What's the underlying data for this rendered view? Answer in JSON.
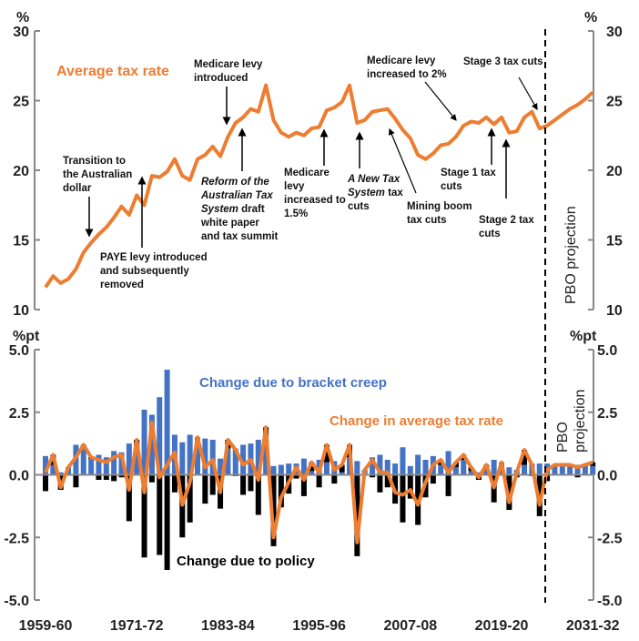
{
  "chart_data": [
    {
      "type": "line",
      "title": "Average tax rate",
      "unit_left": "%",
      "unit_right": "%",
      "ylim": [
        10,
        30
      ],
      "y_ticks": [
        "30",
        "25",
        "20",
        "15",
        "10"
      ],
      "series": [
        {
          "name": "Average tax rate",
          "color": "#ED7D31",
          "values": [
            11.6,
            12.4,
            11.9,
            12.2,
            12.9,
            14.1,
            14.8,
            15.4,
            15.9,
            16.6,
            17.4,
            16.8,
            18.2,
            17.5,
            19.6,
            19.5,
            19.9,
            20.8,
            19.6,
            19.3,
            20.8,
            21.1,
            21.7,
            21.0,
            22.4,
            23.4,
            23.8,
            24.4,
            24.2,
            26.1,
            23.6,
            22.7,
            22.4,
            22.7,
            22.5,
            23.0,
            23.1,
            24.3,
            24.5,
            24.9,
            26.1,
            23.4,
            23.6,
            24.2,
            24.3,
            24.4,
            23.7,
            22.9,
            22.3,
            21.1,
            20.8,
            21.2,
            21.8,
            21.9,
            22.4,
            23.2,
            23.5,
            23.4,
            23.8,
            23.3,
            23.8,
            22.7,
            22.8,
            23.8,
            24.2,
            23.0,
            23.2,
            23.6,
            24.0,
            24.4,
            24.7,
            25.1,
            25.6
          ]
        }
      ],
      "projection_label": "PBO projection",
      "projection_start": "2025-26"
    },
    {
      "type": "bar",
      "unit_left": "%pt",
      "unit_right": "%pt",
      "ylim": [
        -5,
        5
      ],
      "y_ticks": [
        "5.0",
        "2.5",
        "0.0",
        "-2.5",
        "-5.0"
      ],
      "series": [
        {
          "name": "Change due to bracket creep",
          "color": "#4472C4",
          "kind": "bar",
          "values": [
            0.75,
            0.4,
            0.1,
            0.3,
            1.2,
            1.15,
            0.65,
            0.8,
            0.7,
            0.95,
            0.9,
            1.25,
            1.1,
            2.6,
            2.4,
            3.1,
            4.2,
            1.6,
            1.3,
            1.6,
            1.5,
            1.45,
            1.4,
            0.65,
            1.05,
            1.05,
            1.2,
            1.25,
            1.4,
            1.6,
            0.35,
            0.4,
            0.45,
            0.45,
            0.65,
            0.15,
            0.6,
            0.5,
            0.55,
            0.1,
            0.7,
            0.55,
            0.2,
            0.7,
            0.8,
            0.6,
            0.45,
            1.1,
            0.35,
            0.8,
            0.6,
            0.75,
            0.4,
            0.95,
            0.3,
            0.6,
            0.15,
            0.1,
            0.2,
            0.6,
            0.5,
            0.3,
            0.2,
            0.4,
            0.45,
            0.45,
            0.45,
            0.4,
            0.4,
            0.4,
            0.4,
            0.35,
            0.35
          ]
        },
        {
          "name": "Change due to policy",
          "color": "#000000",
          "kind": "bar",
          "values": [
            -0.65,
            0.4,
            -0.6,
            0,
            -0.5,
            0.05,
            0.05,
            -0.2,
            -0.2,
            -0.25,
            -0.1,
            -1.85,
            0.3,
            -3.3,
            -0.3,
            -3.2,
            -3.8,
            -0.7,
            -2.5,
            -1.9,
            0,
            -1.15,
            -0.8,
            -1.35,
            0.35,
            -0.05,
            -0.8,
            -0.65,
            -1.6,
            0.3,
            -2.85,
            -1.3,
            -0.75,
            -0.15,
            -0.85,
            0.35,
            -0.5,
            0.7,
            -0.35,
            0.3,
            0.5,
            -3.25,
            0,
            -0.1,
            -0.7,
            -0.5,
            -1.15,
            -1.9,
            -0.95,
            -2.0,
            -0.9,
            -0.35,
            0.2,
            -0.85,
            0.2,
            0.2,
            0.15,
            -0.2,
            0.2,
            -1.1,
            0,
            -1.4,
            -0.1,
            0.6,
            -0.05,
            -1.65,
            -0.25,
            0,
            0,
            0,
            -0.1,
            0.05,
            0.15
          ]
        },
        {
          "name": "Change in average tax rate",
          "color": "#ED7D31",
          "kind": "line",
          "values": [
            0.1,
            0.8,
            -0.5,
            0.3,
            0.7,
            1.2,
            0.7,
            0.6,
            0.5,
            0.7,
            0.8,
            -0.6,
            1.4,
            -0.7,
            2.1,
            -0.1,
            0.4,
            0.9,
            -1.2,
            -0.3,
            1.5,
            0.3,
            0.6,
            -0.7,
            1.4,
            1.0,
            0.4,
            0.6,
            -0.2,
            1.9,
            -2.5,
            -0.9,
            -0.3,
            0.3,
            -0.2,
            0.5,
            0.1,
            1.2,
            0.2,
            0.4,
            1.2,
            -2.7,
            0.2,
            0.6,
            0.1,
            0.1,
            -0.7,
            -0.8,
            -0.6,
            -1.2,
            -0.3,
            0.4,
            0.6,
            0.1,
            0.5,
            0.8,
            0.3,
            -0.1,
            0.4,
            -0.5,
            0.5,
            -1.1,
            0.1,
            1.0,
            0.4,
            -1.2,
            0.2,
            0.4,
            0.4,
            0.4,
            0.3,
            0.4,
            0.5
          ]
        }
      ],
      "projection_label": [
        "PBO",
        "projection"
      ]
    }
  ],
  "categories": [
    "1959-60",
    "1960-61",
    "1961-62",
    "1962-63",
    "1963-64",
    "1964-65",
    "1965-66",
    "1966-67",
    "1967-68",
    "1968-69",
    "1969-70",
    "1970-71",
    "1971-72",
    "1972-73",
    "1973-74",
    "1974-75",
    "1975-76",
    "1976-77",
    "1977-78",
    "1978-79",
    "1979-80",
    "1980-81",
    "1981-82",
    "1982-83",
    "1983-84",
    "1984-85",
    "1985-86",
    "1986-87",
    "1987-88",
    "1988-89",
    "1989-90",
    "1990-91",
    "1991-92",
    "1992-93",
    "1993-94",
    "1994-95",
    "1995-96",
    "1996-97",
    "1997-98",
    "1998-99",
    "1999-00",
    "2000-01",
    "2001-02",
    "2002-03",
    "2003-04",
    "2004-05",
    "2005-06",
    "2006-07",
    "2007-08",
    "2008-09",
    "2009-10",
    "2010-11",
    "2011-12",
    "2012-13",
    "2013-14",
    "2014-15",
    "2015-16",
    "2016-17",
    "2017-18",
    "2018-19",
    "2019-20",
    "2020-21",
    "2021-22",
    "2022-23",
    "2023-24",
    "2024-25",
    "2025-26",
    "2026-27",
    "2027-28",
    "2028-29",
    "2029-30",
    "2030-31",
    "2031-32"
  ],
  "x_tick_labels": [
    "1959-60",
    "1971-72",
    "1983-84",
    "1995-96",
    "2007-08",
    "2019-20",
    "2031-32"
  ],
  "annotations": [
    {
      "lines": [
        [
          {
            "t": "Medicare levy"
          }
        ],
        [
          {
            "t": "introduced"
          }
        ]
      ]
    },
    {
      "lines": [
        [
          {
            "t": "Transition to"
          }
        ],
        [
          {
            "t": "the Australian"
          }
        ],
        [
          {
            "t": "dollar"
          }
        ]
      ]
    },
    {
      "lines": [
        [
          {
            "t": "PAYE levy introduced"
          }
        ],
        [
          {
            "t": "and subsequently"
          }
        ],
        [
          {
            "t": "removed"
          }
        ]
      ]
    },
    {
      "lines": [
        [
          {
            "t": "Reform of the",
            "i": true
          }
        ],
        [
          {
            "t": "Australian Tax",
            "i": true
          }
        ],
        [
          {
            "t": "System",
            "i": true
          },
          {
            "t": " draft"
          }
        ],
        [
          {
            "t": "white paper"
          }
        ],
        [
          {
            "t": "and tax summit"
          }
        ]
      ]
    },
    {
      "lines": [
        [
          {
            "t": "Medicare"
          }
        ],
        [
          {
            "t": "levy"
          }
        ],
        [
          {
            "t": "increased to"
          }
        ],
        [
          {
            "t": "1.5%"
          }
        ]
      ]
    },
    {
      "lines": [
        [
          {
            "t": "A New Tax",
            "i": true
          }
        ],
        [
          {
            "t": "System",
            "i": true
          },
          {
            "t": " tax"
          }
        ],
        [
          {
            "t": "cuts"
          }
        ]
      ]
    },
    {
      "lines": [
        [
          {
            "t": "Mining boom"
          }
        ],
        [
          {
            "t": "tax cuts"
          }
        ]
      ]
    },
    {
      "lines": [
        [
          {
            "t": "Medicare levy"
          }
        ],
        [
          {
            "t": "increased to 2%"
          }
        ]
      ]
    },
    {
      "lines": [
        [
          {
            "t": "Stage 3 tax cuts"
          }
        ]
      ]
    },
    {
      "lines": [
        [
          {
            "t": "Stage 1 tax"
          }
        ],
        [
          {
            "t": "cuts"
          }
        ]
      ]
    },
    {
      "lines": [
        [
          {
            "t": "Stage 2 tax"
          }
        ],
        [
          {
            "t": "cuts"
          }
        ]
      ]
    }
  ]
}
